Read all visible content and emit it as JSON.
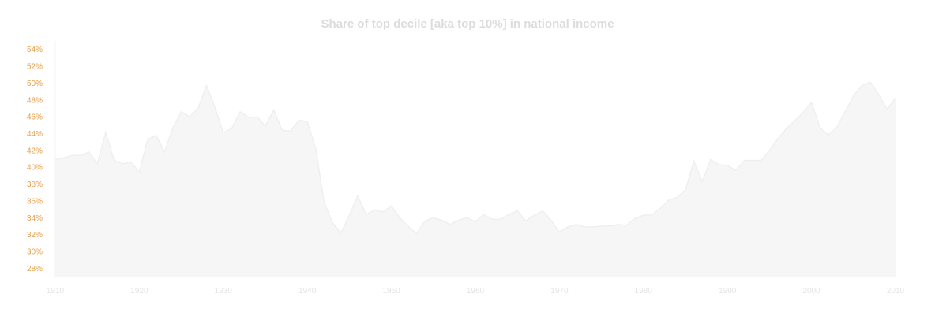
{
  "chart_data": {
    "type": "area",
    "title": "Share of top decile [aka top 10%] in national income",
    "xlabel": "",
    "ylabel": "",
    "xlim": [
      1910,
      2010
    ],
    "ylim": [
      27,
      55
    ],
    "x_ticks": [
      1910,
      1920,
      1930,
      1940,
      1950,
      1960,
      1970,
      1980,
      1990,
      2000,
      2010
    ],
    "y_ticks": [
      "54%",
      "52%",
      "50%",
      "48%",
      "46%",
      "44%",
      "42%",
      "40%",
      "38%",
      "36%",
      "34%",
      "32%",
      "30%",
      "28%"
    ],
    "y_tick_values": [
      54,
      52,
      50,
      48,
      46,
      44,
      42,
      40,
      38,
      36,
      34,
      32,
      30,
      28
    ],
    "grid": false,
    "legend": "none",
    "colors": {
      "fill": "#f6f6f6",
      "line": "#efefef",
      "ytick": "#e8a04a",
      "xtick": "#e4e4e4",
      "title": "#dcdcdc"
    },
    "series": [
      {
        "x": [
          1910,
          1911,
          1912,
          1913,
          1914,
          1915,
          1916,
          1917,
          1918,
          1919,
          1920,
          1921,
          1922,
          1923,
          1924,
          1925,
          1926,
          1927,
          1928,
          1929,
          1930,
          1931,
          1932,
          1933,
          1934,
          1935,
          1936,
          1937,
          1938,
          1939,
          1940,
          1941,
          1942,
          1943,
          1944,
          1945,
          1946,
          1947,
          1948,
          1949,
          1950,
          1951,
          1952,
          1953,
          1954,
          1955,
          1956,
          1957,
          1958,
          1959,
          1960,
          1961,
          1962,
          1963,
          1964,
          1965,
          1966,
          1967,
          1968,
          1969,
          1970,
          1971,
          1972,
          1973,
          1974,
          1975,
          1976,
          1977,
          1978,
          1979,
          1980,
          1981,
          1982,
          1983,
          1984,
          1985,
          1986,
          1987,
          1988,
          1989,
          1990,
          1991,
          1992,
          1993,
          1994,
          1995,
          1996,
          1997,
          1998,
          1999,
          2000,
          2001,
          2002,
          2003,
          2004,
          2005,
          2006,
          2007,
          2008,
          2009,
          2010
        ],
        "values": [
          40.9,
          41.1,
          41.4,
          41.4,
          41.8,
          40.4,
          44.1,
          40.8,
          40.4,
          40.6,
          39.4,
          43.3,
          43.8,
          41.8,
          44.7,
          46.6,
          46.0,
          47.0,
          49.7,
          47.1,
          44.1,
          44.6,
          46.6,
          45.9,
          46.0,
          44.9,
          46.8,
          44.4,
          44.3,
          45.6,
          45.4,
          42.2,
          35.8,
          33.4,
          32.2,
          34.3,
          36.6,
          34.4,
          34.9,
          34.7,
          35.4,
          34.0,
          33.0,
          32.1,
          33.6,
          34.0,
          33.7,
          33.2,
          33.7,
          34.0,
          33.5,
          34.4,
          33.8,
          33.8,
          34.4,
          34.8,
          33.6,
          34.3,
          34.8,
          33.7,
          32.3,
          32.9,
          33.2,
          32.9,
          32.9,
          33.0,
          33.0,
          33.2,
          33.1,
          33.9,
          34.3,
          34.3,
          35.1,
          36.1,
          36.4,
          37.3,
          40.7,
          38.3,
          40.9,
          40.3,
          40.2,
          39.6,
          40.8,
          40.8,
          40.8,
          42.0,
          43.4,
          44.6,
          45.5,
          46.5,
          47.7,
          44.7,
          43.8,
          44.7,
          46.6,
          48.5,
          49.7,
          50.1,
          48.6,
          46.9,
          48.2
        ]
      }
    ]
  }
}
